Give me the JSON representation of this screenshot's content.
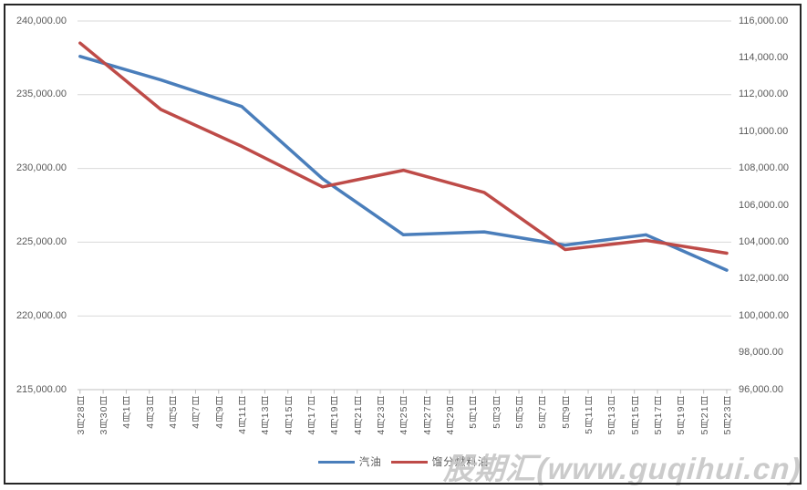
{
  "watermark": "股期汇(www.guqihui.cn)",
  "legend": {
    "items": [
      {
        "label": "汽油",
        "color": "#4A7EBB"
      },
      {
        "label": "馏分燃料油",
        "color": "#BE4B48"
      }
    ]
  },
  "colors": {
    "gridline": "#D9D9D9",
    "axis_line": "#BFBFBF",
    "tick_label": "#595959",
    "series_gasoline": "#4A7EBB",
    "series_distillate": "#BE4B48",
    "watermark": "#C3C3C3",
    "border": "#262626"
  },
  "chart_data": {
    "type": "line",
    "title": "",
    "xlabel": "",
    "ylabel_left": "",
    "ylabel_right": "",
    "grid": "horizontal",
    "legend_position": "bottom",
    "x_tick_labels": [
      "3月28日",
      "3月30日",
      "4月1日",
      "4月3日",
      "4月5日",
      "4月7日",
      "4月9日",
      "4月11日",
      "4月13日",
      "4月15日",
      "4月17日",
      "4月19日",
      "4月21日",
      "4月23日",
      "4月25日",
      "4月27日",
      "4月29日",
      "5月1日",
      "5月3日",
      "5月5日",
      "5月7日",
      "5月9日",
      "5月11日",
      "5月13日",
      "5月15日",
      "5月17日",
      "5月19日",
      "5月21日",
      "5月23日"
    ],
    "points_every_n_categories": 3.5,
    "axes": {
      "left": {
        "min": 215000,
        "max": 240000,
        "step": 5000,
        "tick_labels": [
          "240,000.00",
          "235,000.00",
          "230,000.00",
          "225,000.00",
          "220,000.00",
          "215,000.00"
        ]
      },
      "right": {
        "min": 96000,
        "max": 116000,
        "step": 2000,
        "tick_labels": [
          "116,000.00",
          "114,000.00",
          "112,000.00",
          "110,000.00",
          "108,000.00",
          "106,000.00",
          "104,000.00",
          "102,000.00",
          "100,000.00",
          "98,000.00",
          "96,000.00"
        ]
      }
    },
    "series": [
      {
        "name": "汽油",
        "axis": "left",
        "color": "#4A7EBB",
        "dates": [
          "3月28日",
          "4月4日",
          "4月11日",
          "4月18日",
          "4月25日",
          "5月2日",
          "5月9日",
          "5月16日",
          "5月23日"
        ],
        "values": [
          237600,
          236000,
          234200,
          229300,
          225500,
          225700,
          224800,
          225500,
          223100
        ]
      },
      {
        "name": "馏分燃料油",
        "axis": "right",
        "color": "#BE4B48",
        "dates": [
          "3月28日",
          "4月4日",
          "4月11日",
          "4月18日",
          "4月25日",
          "5月2日",
          "5月9日",
          "5月16日",
          "5月23日"
        ],
        "values": [
          114800,
          111200,
          109200,
          107000,
          107900,
          106700,
          103600,
          104100,
          103400
        ]
      }
    ]
  }
}
